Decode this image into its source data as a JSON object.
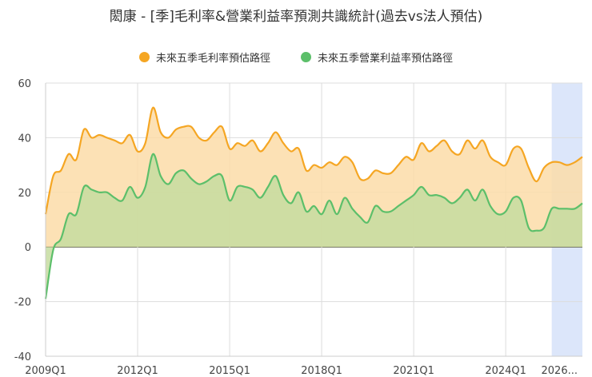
{
  "chart_data": {
    "type": "area",
    "title": "閎康 - [季]毛利率&營業利益率預測共識統計(過去vs法人預估)",
    "xlabel": "",
    "ylabel": "",
    "ylim": [
      -40,
      60
    ],
    "yticks": [
      -40,
      -20,
      0,
      20,
      40,
      60
    ],
    "x_tick_labels": [
      "2009Q1",
      "2012Q1",
      "2015Q1",
      "2018Q1",
      "2021Q1",
      "2024Q1",
      "2026..."
    ],
    "x_tick_positions": [
      0,
      12,
      24,
      36,
      48,
      60,
      67
    ],
    "forecast_start": 66,
    "legend_position": "top",
    "grid": true,
    "colors": {
      "gross": "#f5a623",
      "operating": "#5cbf6a",
      "gross_fill": "#fbdca8",
      "operating_fill": "#c6dca0",
      "forecast_band": "#dce6fa"
    },
    "series": [
      {
        "name": "未來五季毛利率預估路徑",
        "values": [
          12,
          26,
          28,
          34,
          32,
          43,
          40,
          41,
          40,
          39,
          38,
          41,
          35,
          38,
          51,
          42,
          40,
          43,
          44,
          44,
          40,
          39,
          42,
          44,
          36,
          38,
          37,
          39,
          35,
          38,
          42,
          38,
          35,
          36,
          28,
          30,
          29,
          31,
          30,
          33,
          31,
          25,
          25,
          28,
          27,
          27,
          30,
          33,
          32,
          38,
          35,
          37,
          39,
          35,
          34,
          39,
          36,
          39,
          33,
          31,
          30,
          36,
          36,
          29,
          24,
          29,
          31,
          31,
          30,
          31,
          33
        ]
      },
      {
        "name": "未來五季營業利益率預估路徑",
        "values": [
          -19,
          -1,
          3,
          12,
          12,
          22,
          21,
          20,
          20,
          18,
          17,
          22,
          18,
          22,
          34,
          26,
          23,
          27,
          28,
          25,
          23,
          24,
          26,
          26,
          17,
          22,
          22,
          21,
          18,
          22,
          26,
          19,
          16,
          20,
          13,
          15,
          12,
          17,
          12,
          18,
          14,
          11,
          9,
          15,
          13,
          13,
          15,
          17,
          19,
          22,
          19,
          19,
          18,
          16,
          18,
          21,
          17,
          21,
          15,
          12,
          13,
          18,
          17,
          7,
          6,
          7,
          14,
          14,
          14,
          14,
          16
        ]
      }
    ]
  }
}
